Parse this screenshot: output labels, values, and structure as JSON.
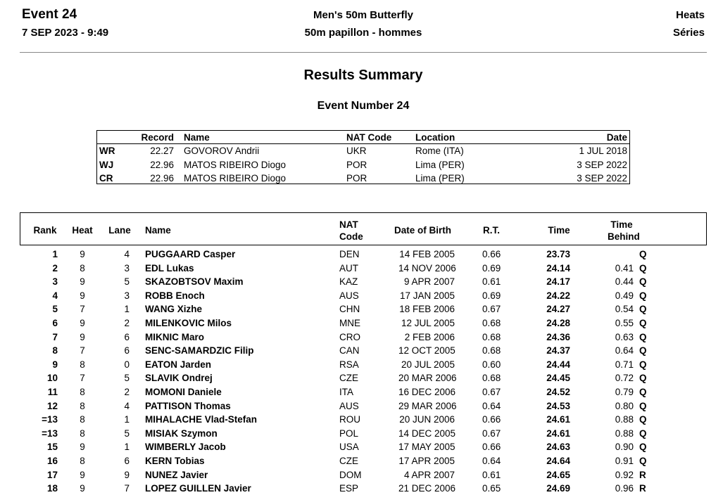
{
  "header": {
    "event": "Event 24",
    "datetime": "7 SEP 2023 - 9:49",
    "title": "Men's 50m Butterfly",
    "title_fr": "50m papillon - hommes",
    "phase": "Heats",
    "phase_fr": "Séries"
  },
  "summary_title": "Results Summary",
  "event_number": "Event Number 24",
  "records": {
    "headers": [
      "Record",
      "Name",
      "NAT Code",
      "Location",
      "Date"
    ],
    "rows": [
      [
        "WR",
        "22.27",
        "GOVOROV Andrii",
        "UKR",
        "Rome (ITA)",
        "1 JUL 2018"
      ],
      [
        "WJ",
        "22.96",
        "MATOS RIBEIRO Diogo",
        "POR",
        "Lima (PER)",
        "3 SEP 2022"
      ],
      [
        "CR",
        "22.96",
        "MATOS RIBEIRO Diogo",
        "POR",
        "Lima (PER)",
        "3 SEP 2022"
      ]
    ]
  },
  "results": {
    "headers": [
      "Rank",
      "Heat",
      "Lane",
      "Name",
      "NAT Code",
      "Date of Birth",
      "R.T.",
      "Time",
      "Time Behind"
    ],
    "rows": [
      {
        "rank": "1",
        "heat": "9",
        "lane": "4",
        "name": "PUGGAARD Casper",
        "nat": "DEN",
        "dob": "14 FEB 2005",
        "rt": "0.66",
        "time": "23.73",
        "q": "Q"
      },
      {
        "rank": "2",
        "heat": "8",
        "lane": "3",
        "name": "EDL Lukas",
        "nat": "AUT",
        "dob": "14 NOV 2006",
        "rt": "0.69",
        "time": "24.14",
        "behind": "0.41",
        "q": "Q"
      },
      {
        "rank": "3",
        "heat": "9",
        "lane": "5",
        "name": "SKAZOBTSOV Maxim",
        "nat": "KAZ",
        "dob": "9 APR 2007",
        "rt": "0.61",
        "time": "24.17",
        "behind": "0.44",
        "q": "Q"
      },
      {
        "rank": "4",
        "heat": "9",
        "lane": "3",
        "name": "ROBB Enoch",
        "nat": "AUS",
        "dob": "17 JAN 2005",
        "rt": "0.69",
        "time": "24.22",
        "behind": "0.49",
        "q": "Q"
      },
      {
        "rank": "5",
        "heat": "7",
        "lane": "1",
        "name": "WANG Xizhe",
        "nat": "CHN",
        "dob": "18 FEB 2006",
        "rt": "0.67",
        "time": "24.27",
        "behind": "0.54",
        "q": "Q"
      },
      {
        "rank": "6",
        "heat": "9",
        "lane": "2",
        "name": "MILENKOVIC Milos",
        "nat": "MNE",
        "dob": "12 JUL 2005",
        "rt": "0.68",
        "time": "24.28",
        "behind": "0.55",
        "q": "Q"
      },
      {
        "rank": "7",
        "heat": "9",
        "lane": "6",
        "name": "MIKNIC Maro",
        "nat": "CRO",
        "dob": "2 FEB 2006",
        "rt": "0.68",
        "time": "24.36",
        "behind": "0.63",
        "q": "Q"
      },
      {
        "rank": "8",
        "heat": "7",
        "lane": "6",
        "name": "SENC-SAMARDZIC Filip",
        "nat": "CAN",
        "dob": "12 OCT 2005",
        "rt": "0.68",
        "time": "24.37",
        "behind": "0.64",
        "q": "Q"
      },
      {
        "rank": "9",
        "heat": "8",
        "lane": "0",
        "name": "EATON Jarden",
        "nat": "RSA",
        "dob": "20 JUL 2005",
        "rt": "0.60",
        "time": "24.44",
        "behind": "0.71",
        "q": "Q"
      },
      {
        "rank": "10",
        "heat": "7",
        "lane": "5",
        "name": "SLAVIK Ondrej",
        "nat": "CZE",
        "dob": "20 MAR 2006",
        "rt": "0.68",
        "time": "24.45",
        "behind": "0.72",
        "q": "Q"
      },
      {
        "rank": "11",
        "heat": "8",
        "lane": "2",
        "name": "MOMONI Daniele",
        "nat": "ITA",
        "dob": "16 DEC 2006",
        "rt": "0.67",
        "time": "24.52",
        "behind": "0.79",
        "q": "Q"
      },
      {
        "rank": "12",
        "heat": "8",
        "lane": "4",
        "name": "PATTISON Thomas",
        "nat": "AUS",
        "dob": "29 MAR 2006",
        "rt": "0.64",
        "time": "24.53",
        "behind": "0.80",
        "q": "Q"
      },
      {
        "rank": "=13",
        "heat": "8",
        "lane": "1",
        "name": "MIHALACHE Vlad-Stefan",
        "nat": "ROU",
        "dob": "20 JUN 2006",
        "rt": "0.66",
        "time": "24.61",
        "behind": "0.88",
        "q": "Q"
      },
      {
        "rank": "=13",
        "heat": "8",
        "lane": "5",
        "name": "MISIAK Szymon",
        "nat": "POL",
        "dob": "14 DEC 2005",
        "rt": "0.67",
        "time": "24.61",
        "behind": "0.88",
        "q": "Q"
      },
      {
        "rank": "15",
        "heat": "9",
        "lane": "1",
        "name": "WIMBERLY Jacob",
        "nat": "USA",
        "dob": "17 MAY 2005",
        "rt": "0.66",
        "time": "24.63",
        "behind": "0.90",
        "q": "Q"
      },
      {
        "rank": "16",
        "heat": "8",
        "lane": "6",
        "name": "KERN Tobias",
        "nat": "CZE",
        "dob": "17 APR 2005",
        "rt": "0.64",
        "time": "24.64",
        "behind": "0.91",
        "q": "Q"
      },
      {
        "rank": "17",
        "heat": "9",
        "lane": "9",
        "name": "NUNEZ Javier",
        "nat": "DOM",
        "dob": "4 APR 2007",
        "rt": "0.61",
        "time": "24.65",
        "behind": "0.92",
        "q": "R"
      },
      {
        "rank": "18",
        "heat": "9",
        "lane": "7",
        "name": "LOPEZ GUILLEN Javier",
        "nat": "ESP",
        "dob": "21 DEC 2006",
        "rt": "0.65",
        "time": "24.69",
        "behind": "0.96",
        "q": "R"
      }
    ]
  }
}
